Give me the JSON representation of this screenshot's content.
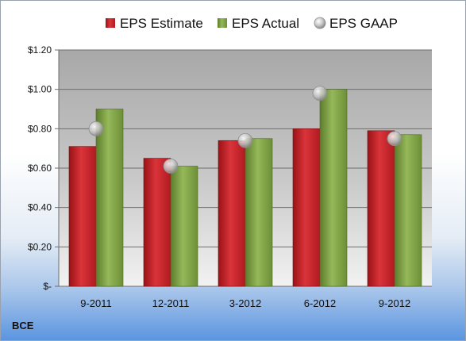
{
  "company": "BCE",
  "colors": {
    "estimate": "#c8242b",
    "actual": "#7da043",
    "gaap": "#bfbfbf"
  },
  "chart_data": {
    "type": "bar",
    "categories": [
      "9-2011",
      "12-2011",
      "3-2012",
      "6-2012",
      "9-2012"
    ],
    "series": [
      {
        "name": "EPS Estimate",
        "kind": "bar",
        "values": [
          0.71,
          0.65,
          0.74,
          0.8,
          0.79
        ]
      },
      {
        "name": "EPS Actual",
        "kind": "bar",
        "values": [
          0.9,
          0.61,
          0.75,
          1.0,
          0.77
        ]
      },
      {
        "name": "EPS GAAP",
        "kind": "marker",
        "values": [
          0.8,
          0.61,
          0.74,
          0.98,
          0.75
        ]
      }
    ],
    "ylim": [
      0,
      1.2
    ],
    "yticks": [
      0,
      0.2,
      0.4,
      0.6,
      0.8,
      1.0,
      1.2
    ],
    "ytick_labels": [
      "$-",
      "$0.20",
      "$0.40",
      "$0.60",
      "$0.80",
      "$1.00",
      "$1.20"
    ],
    "grid": true,
    "legend": "top"
  }
}
